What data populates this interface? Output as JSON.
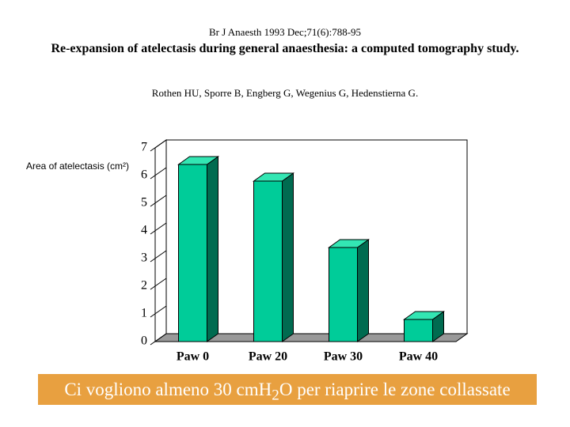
{
  "citation": "Br J Anaesth 1993 Dec;71(6):788-95",
  "title": "Re-expansion of atelectasis during general anaesthesia: a computed tomography study.",
  "authors": "Rothen HU, Sporre B, Engberg G, Wegenius G, Hedenstierna G.",
  "chart_data": {
    "type": "bar3d",
    "y_label": "Area of atelectasis (cm²)",
    "categories": [
      "Paw 0",
      "Paw 20",
      "Paw 30",
      "Paw 40"
    ],
    "values": [
      6.4,
      5.8,
      3.4,
      0.8
    ],
    "color": "#00cc99",
    "ylim": [
      0,
      7
    ],
    "yticks": [
      0,
      1,
      2,
      3,
      4,
      5,
      6,
      7
    ]
  },
  "banner": {
    "before": "Ci vogliono almeno 30 cmH",
    "sub": "2",
    "after": "O per riaprire le zone collassate"
  }
}
